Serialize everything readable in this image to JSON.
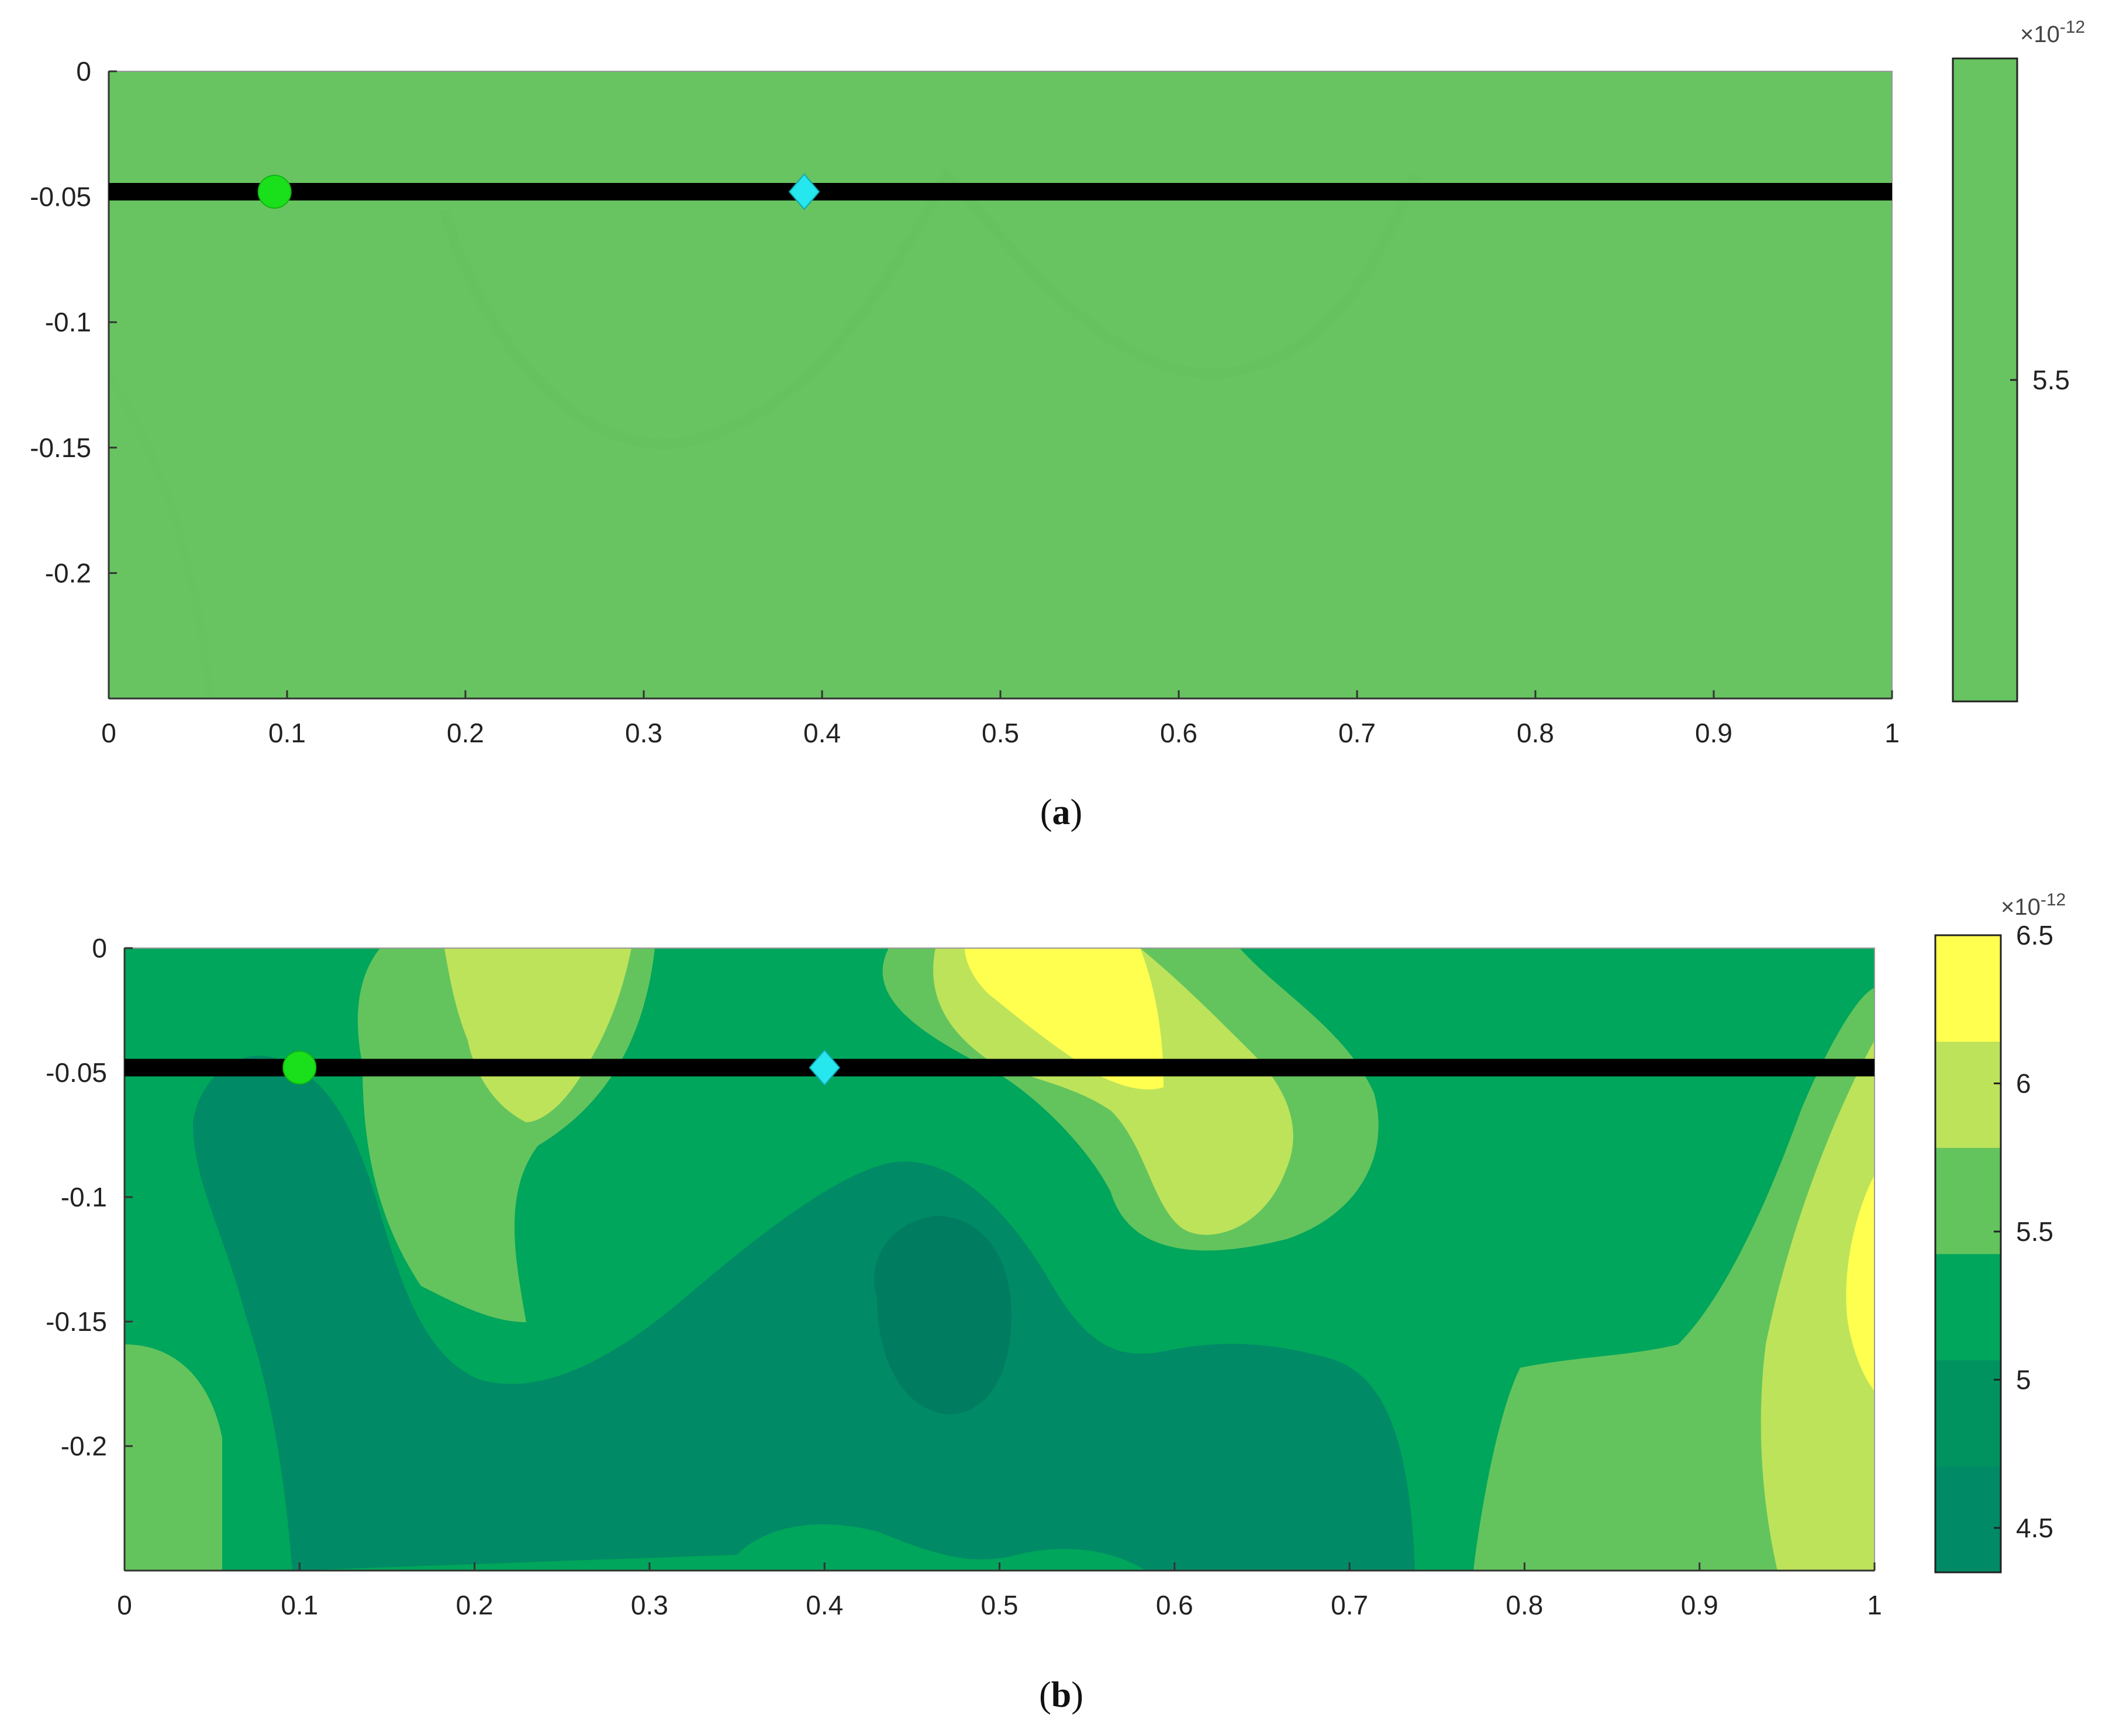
{
  "colors": {
    "line": "#000000",
    "circle_marker": "#19e01a",
    "diamond_marker": "#26e6ee",
    "panel_a_fill": "#68c461"
  },
  "chart_data": [
    {
      "type": "heatmap",
      "panel": "a",
      "caption_letter": "a",
      "title": "",
      "xlabel": "",
      "ylabel": "",
      "xlim": [
        0,
        1
      ],
      "ylim": [
        -0.25,
        0
      ],
      "xticks": [
        "0",
        "0.1",
        "0.2",
        "0.3",
        "0.4",
        "0.5",
        "0.6",
        "0.7",
        "0.8",
        "0.9",
        "1"
      ],
      "yticks": [
        "0",
        "-0.05",
        "-0.1",
        "-0.15",
        "-0.2"
      ],
      "colorbar": {
        "multiplier_base": "×10",
        "multiplier_exp": "-12",
        "ticks": [
          {
            "label": "5.5",
            "value": 5.5
          }
        ],
        "range": [
          5.1,
          5.9
        ],
        "colors": [
          "#68c461"
        ]
      },
      "line": {
        "y": -0.048,
        "x0": 0,
        "x1": 1
      },
      "markers": [
        {
          "shape": "circle",
          "x": 0.093,
          "y": -0.048
        },
        {
          "shape": "diamond",
          "x": 0.39,
          "y": -0.048
        }
      ]
    },
    {
      "type": "heatmap",
      "panel": "b",
      "caption_letter": "b",
      "title": "",
      "xlabel": "",
      "ylabel": "",
      "xlim": [
        0,
        1
      ],
      "ylim": [
        -0.25,
        0
      ],
      "xticks": [
        "0",
        "0.1",
        "0.2",
        "0.3",
        "0.4",
        "0.5",
        "0.6",
        "0.7",
        "0.8",
        "0.9",
        "1"
      ],
      "yticks": [
        "0",
        "-0.05",
        "-0.1",
        "-0.15",
        "-0.2"
      ],
      "colorbar": {
        "multiplier_base": "×10",
        "multiplier_exp": "-12",
        "ticks": [
          {
            "label": "6.5",
            "value": 6.5
          },
          {
            "label": "6",
            "value": 6.0
          },
          {
            "label": "5.5",
            "value": 5.5
          },
          {
            "label": "5",
            "value": 5.0
          },
          {
            "label": "4.5",
            "value": 4.5
          }
        ],
        "range": [
          4.35,
          6.5
        ],
        "colors": [
          "#008a66",
          "#009360",
          "#00a65b",
          "#63c45d",
          "#bde35b",
          "#ffff50"
        ]
      },
      "line": {
        "y": -0.048,
        "x0": 0,
        "x1": 1
      },
      "markers": [
        {
          "shape": "circle",
          "x": 0.1,
          "y": -0.048
        },
        {
          "shape": "diamond",
          "x": 0.4,
          "y": -0.048
        }
      ]
    }
  ]
}
